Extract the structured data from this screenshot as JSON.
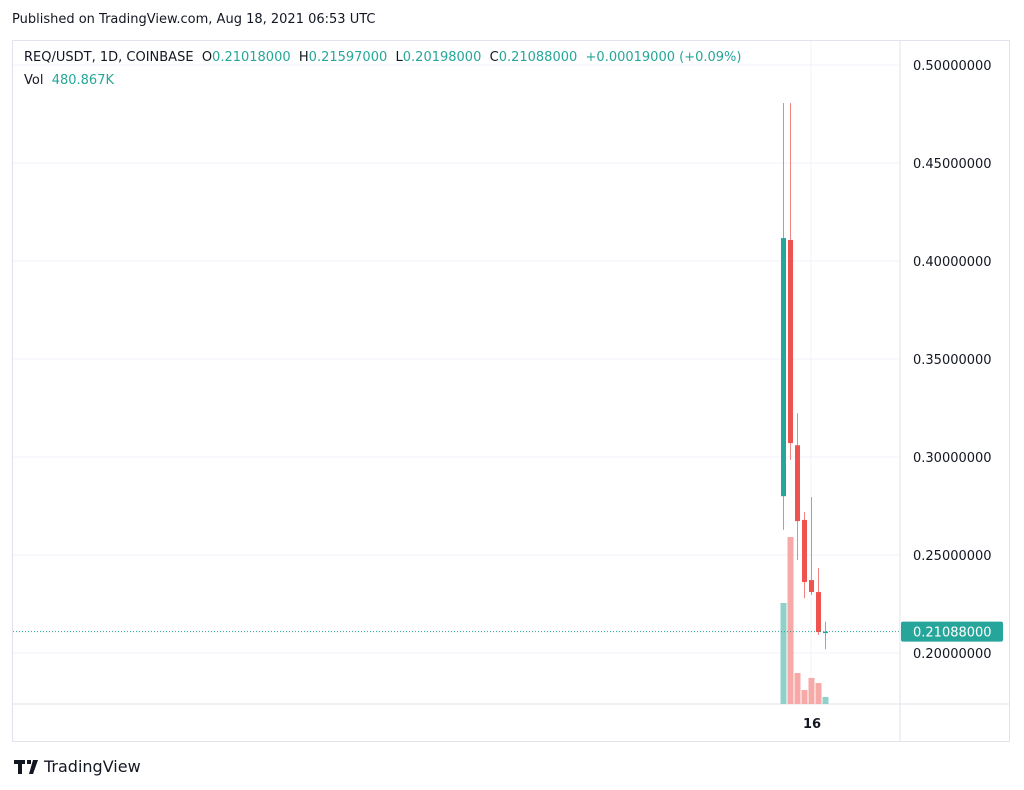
{
  "header": {
    "published": "Published on TradingView.com, Aug 18, 2021 06:53 UTC"
  },
  "legend": {
    "symbol": "REQ/USDT, 1D, COINBASE",
    "o_label": "O",
    "o": "0.21018000",
    "h_label": "H",
    "h": "0.21597000",
    "l_label": "L",
    "l": "0.20198000",
    "c_label": "C",
    "c": "0.21088000",
    "change": "+0.00019000 (+0.09%)",
    "vol_label": "Vol",
    "vol": "480.867K"
  },
  "footer": {
    "logo_text": "TradingView"
  },
  "colors": {
    "up": "#26a69a",
    "down": "#ef5350",
    "up_vol": "#8fd0c9",
    "down_vol": "#f7a9a7",
    "grid": "#f0f3fa"
  },
  "chart_data": {
    "type": "candlestick",
    "ylim": [
      0.175,
      0.52
    ],
    "yticks": [
      "0.50000000",
      "0.45000000",
      "0.40000000",
      "0.35000000",
      "0.30000000",
      "0.25000000",
      "0.20000000"
    ],
    "ytick_values": [
      0.5,
      0.45,
      0.4,
      0.35,
      0.3,
      0.25,
      0.2
    ],
    "xtick_label": "16",
    "last_price_label": "0.21088000",
    "last_price": 0.21088,
    "candles": [
      {
        "o": 0.28,
        "h": 0.4806,
        "l": 0.2628,
        "c": 0.4117,
        "v": 6940000
      },
      {
        "o": 0.4107,
        "h": 0.4806,
        "l": 0.2985,
        "c": 0.3071,
        "v": 11470000
      },
      {
        "o": 0.306,
        "h": 0.3224,
        "l": 0.2474,
        "c": 0.2673,
        "v": 2130000
      },
      {
        "o": 0.2679,
        "h": 0.272,
        "l": 0.228,
        "c": 0.2362,
        "v": 960000
      },
      {
        "o": 0.2372,
        "h": 0.2796,
        "l": 0.2296,
        "c": 0.2311,
        "v": 1790000
      },
      {
        "o": 0.2311,
        "h": 0.2434,
        "l": 0.2092,
        "c": 0.2107,
        "v": 1440000
      },
      {
        "o": 0.21018,
        "h": 0.21597,
        "l": 0.20198,
        "c": 0.21088,
        "v": 480867
      }
    ]
  }
}
